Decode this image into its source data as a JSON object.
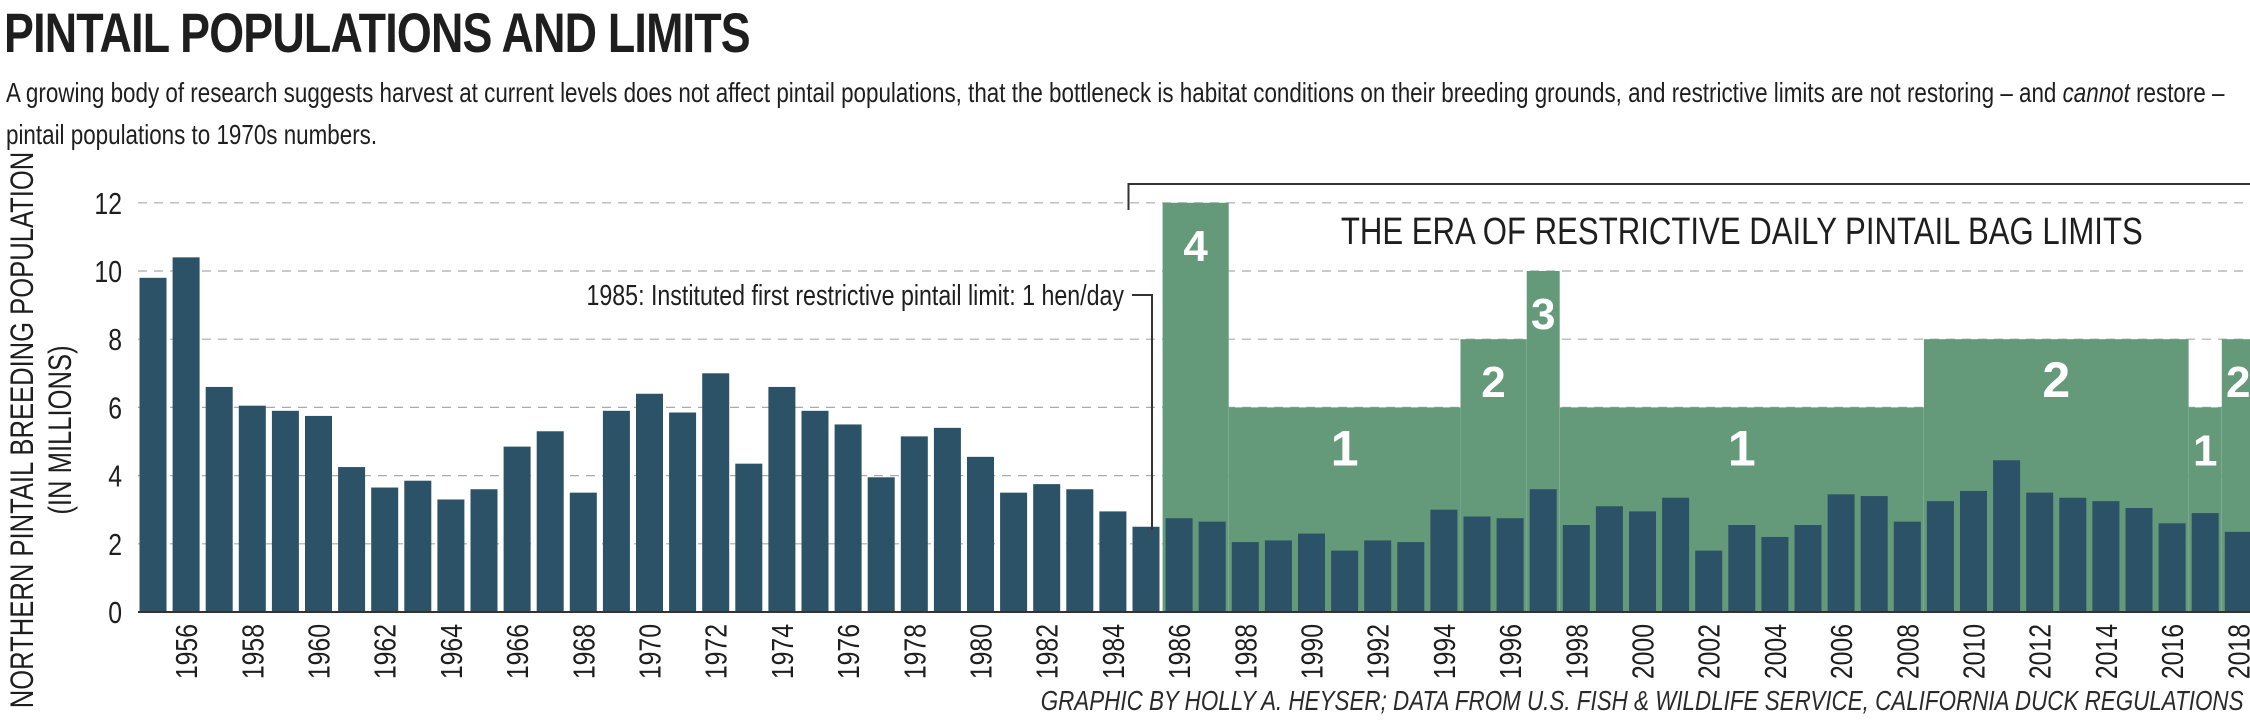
{
  "header": {
    "title": "PINTAIL POPULATIONS AND LIMITS",
    "subtitle_a": "A growing body of research suggests harvest at current levels does not affect pintail populations, that the bottleneck is habitat conditions on their breeding grounds, and restrictive limits are not restoring – and ",
    "subtitle_em": "cannot",
    "subtitle_b": " restore –  pintail populations to 1970s numbers."
  },
  "credit": "GRAPHIC BY HOLLY A. HEYSER; DATA FROM U.S. FISH & WILDLIFE SERVICE, CALIFORNIA DUCK REGULATIONS",
  "colors": {
    "population": "#2b5266",
    "limit": "#64997a",
    "grid": "#aaaaaa",
    "text": "#1e1e1e"
  },
  "chart_data": {
    "type": "bar",
    "ylabel_line1": "NORTHERN PINTAIL BREEDING POPULATION",
    "ylabel_line2": "(IN MILLIONS)",
    "ylim": [
      0,
      12
    ],
    "yticks": [
      0,
      2,
      4,
      6,
      8,
      10,
      12
    ],
    "grid": "dashed horizontal",
    "x": [
      1955,
      1956,
      1957,
      1958,
      1959,
      1960,
      1961,
      1962,
      1963,
      1964,
      1965,
      1966,
      1967,
      1968,
      1969,
      1970,
      1971,
      1972,
      1973,
      1974,
      1975,
      1976,
      1977,
      1978,
      1979,
      1980,
      1981,
      1982,
      1983,
      1984,
      1985,
      1986,
      1987,
      1988,
      1989,
      1990,
      1991,
      1992,
      1993,
      1994,
      1995,
      1996,
      1997,
      1998,
      1999,
      2000,
      2001,
      2002,
      2003,
      2004,
      2005,
      2006,
      2007,
      2008,
      2009,
      2010,
      2011,
      2012,
      2013,
      2014,
      2015,
      2016,
      2017,
      2018
    ],
    "xtick_labels": [
      "1956",
      "1958",
      "1960",
      "1962",
      "1964",
      "1966",
      "1968",
      "1970",
      "1972",
      "1974",
      "1976",
      "1978",
      "1980",
      "1982",
      "1984",
      "1986",
      "1988",
      "1990",
      "1992",
      "1994",
      "1996",
      "1998",
      "2000",
      "2002",
      "2004",
      "2006",
      "2008",
      "2010",
      "2012",
      "2014",
      "2016",
      "2018"
    ],
    "series": [
      {
        "values": [
          9.8,
          10.4,
          6.6,
          6.05,
          5.9,
          5.75,
          4.25,
          3.65,
          3.85,
          3.3,
          3.6,
          4.85,
          5.3,
          3.5,
          5.9,
          6.4,
          5.85,
          7.0,
          4.35,
          6.6,
          5.9,
          5.5,
          3.95,
          5.15,
          5.4,
          4.55,
          3.5,
          3.75,
          3.6,
          2.95,
          2.5,
          2.75,
          2.65,
          2.05,
          2.1,
          2.3,
          1.8,
          2.1,
          2.05,
          3.0,
          2.8,
          2.75,
          3.6,
          2.55,
          3.1,
          2.95,
          3.35,
          1.8,
          2.55,
          2.2,
          2.55,
          3.45,
          3.4,
          2.65,
          3.25,
          3.55,
          4.45,
          3.5,
          3.35,
          3.25,
          3.05,
          2.6,
          2.9,
          2.35
        ]
      }
    ],
    "bag_limits": [
      {
        "from": 1986,
        "to": 1987,
        "limit": "4",
        "height": 12
      },
      {
        "from": 1988,
        "to": 1994,
        "limit": "1",
        "height": 6
      },
      {
        "from": 1995,
        "to": 1996,
        "limit": "2",
        "height": 8
      },
      {
        "from": 1997,
        "to": 1997,
        "limit": "3",
        "height": 10
      },
      {
        "from": 1998,
        "to": 2008,
        "limit": "1",
        "height": 6
      },
      {
        "from": 2009,
        "to": 2016,
        "limit": "2",
        "height": 8
      },
      {
        "from": 2017,
        "to": 2017,
        "limit": "1",
        "height": 6
      },
      {
        "from": 2018,
        "to": 2018,
        "limit": "2",
        "height": 8
      }
    ],
    "annotations": {
      "era_label": "THE ERA OF RESTRICTIVE DAILY PINTAIL BAG LIMITS",
      "first_limit": "1985: Instituted first restrictive pintail limit: 1 hen/day"
    }
  }
}
